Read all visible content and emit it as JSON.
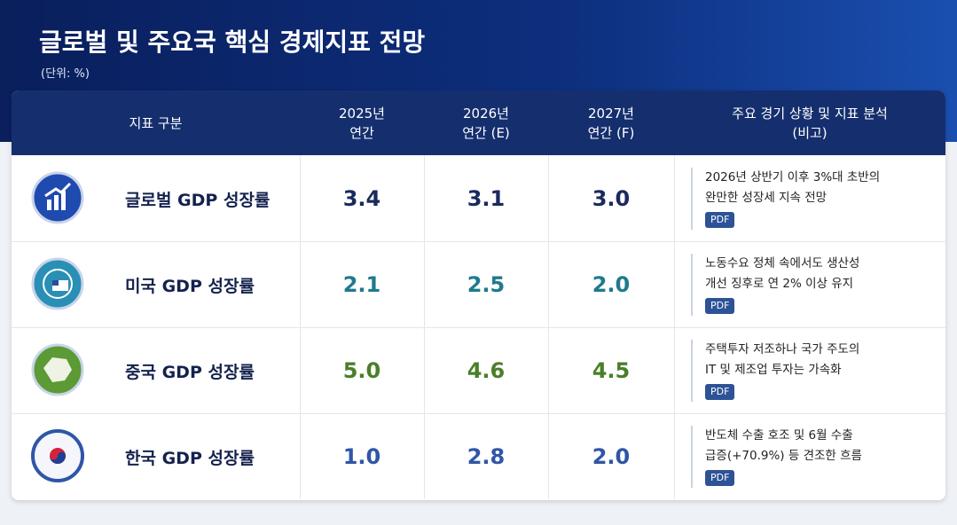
{
  "header": {
    "title": "글로벌 및 주요국 핵심 경제지표 전망",
    "unit": "(단위: %)"
  },
  "table": {
    "columns": [
      [
        "지표 구분"
      ],
      [
        "2025년",
        "연간"
      ],
      [
        "2026년",
        "연간 (E)"
      ],
      [
        "2027년",
        "연간 (F)"
      ],
      [
        "주요 경기 상황 및 지표 분석",
        "(비고)"
      ]
    ],
    "rows": [
      {
        "label": "글로벌 GDP 성장률",
        "values": [
          "3.4",
          "3.1",
          "3.0"
        ],
        "color": "#1b2a5c",
        "note": [
          "2026년 상반기 이후 3%대 초반의",
          "완만한 성장세 지속 전망"
        ],
        "badge": "PDF"
      },
      {
        "label": "미국 GDP 성장률",
        "values": [
          "2.1",
          "2.5",
          "2.0"
        ],
        "color": "#1f7a8c",
        "note": [
          "노동수요 정체 속에서도 생산성",
          "개선 징후로 연 2% 이상 유지"
        ],
        "badge": "PDF"
      },
      {
        "label": "중국 GDP 성장률",
        "values": [
          "5.0",
          "4.6",
          "4.5"
        ],
        "color": "#4a7f2a",
        "note": [
          "주택투자 저조하나 국가 주도의",
          "IT 및 제조업 투자는 가속화"
        ],
        "badge": "PDF"
      },
      {
        "label": "한국 GDP 성장률",
        "values": [
          "1.0",
          "2.8",
          "2.0"
        ],
        "color": "#2f56a6",
        "note": [
          "반도체 수출 호조 및 6월 수출",
          "급증(+70.9%) 등 견조한 흐름"
        ],
        "badge": "PDF"
      }
    ]
  }
}
